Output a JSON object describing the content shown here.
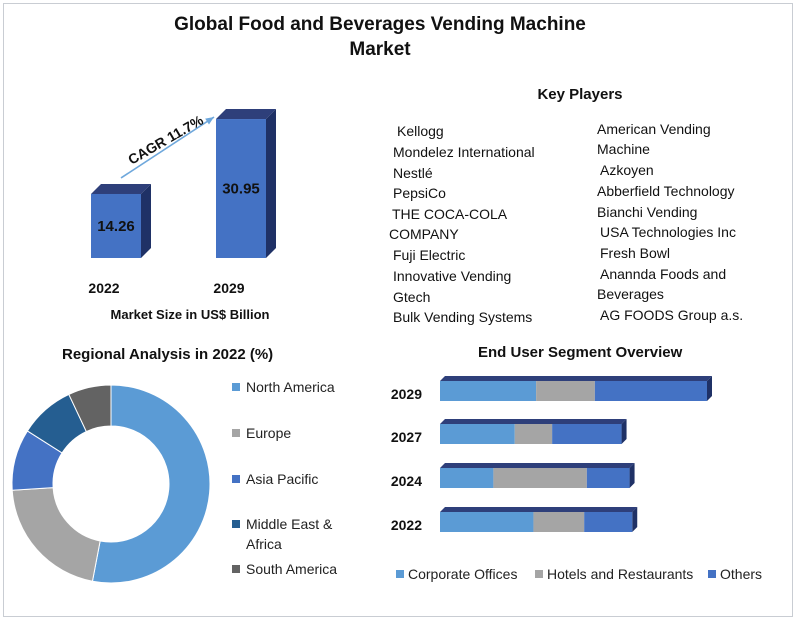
{
  "title": "Global Food and Beverages Vending Machine Market",
  "colors": {
    "blue_dark": "#4472c4",
    "blue_light": "#5b9bd5",
    "gray": "#a5a5a5",
    "navy": "#255e91",
    "dark_gray": "#636363",
    "bar_top": "#2e3f7a",
    "bar_side": "#1f3166"
  },
  "key_players": {
    "title": "Key Players",
    "left": [
      "Kellogg",
      "Mondelez  International",
      "Nestlé",
      "PepsiCo",
      "THE COCA-COLA",
      "COMPANY",
      "Fuji Electric",
      "Innovative Vending",
      "Gtech",
      "Bulk Vending  Systems"
    ],
    "right": [
      "American Vending",
      "Machine",
      "Azkoyen",
      "Abberfield Technology",
      "Bianchi Vending",
      "USA Technologies Inc",
      "Fresh Bowl",
      "Anannda Foods and",
      "Beverages",
      "AG FOODS Group a.s."
    ]
  },
  "chart_data": [
    {
      "type": "bar",
      "categories": [
        "2022",
        "2029"
      ],
      "values": [
        14.26,
        30.95
      ],
      "value_labels": [
        "14.26",
        "30.95"
      ],
      "xlabel": "Market Size in US$ Billion",
      "annotation": "CAGR 11.7%"
    },
    {
      "type": "pie",
      "title": "Regional Analysis in 2022 (%)",
      "labels": [
        "North America",
        "Europe",
        "Asia Pacific",
        "Middle East & Africa",
        "South America"
      ],
      "values": [
        53,
        21,
        10,
        9,
        7
      ],
      "colors": [
        "#5b9bd5",
        "#a5a5a5",
        "#4472c4",
        "#255e91",
        "#636363"
      ],
      "donut": true
    },
    {
      "type": "bar",
      "orientation": "horizontal",
      "stacked": true,
      "title": "End User Segment Overview",
      "categories": [
        "2029",
        "2027",
        "2024",
        "2022"
      ],
      "series": [
        {
          "name": "Corporate Offices",
          "color": "#5b9bd5",
          "values": [
            36,
            28,
            20,
            35
          ]
        },
        {
          "name": "Hotels and Restaurants",
          "color": "#a5a5a5",
          "values": [
            22,
            14,
            35,
            19
          ]
        },
        {
          "name": "Others",
          "color": "#4472c4",
          "values": [
            42,
            26,
            16,
            18
          ]
        }
      ]
    }
  ]
}
